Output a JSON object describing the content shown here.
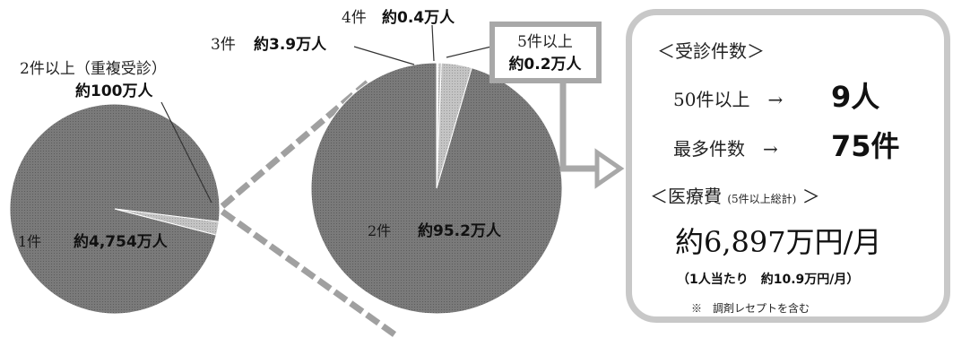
{
  "chart_data": [
    {
      "type": "pie",
      "slices": [
        {
          "label": "1件",
          "value_text": "約4,754万人",
          "value": 4754
        },
        {
          "label": "2件以上（重複受診）",
          "value_text": "約100万人",
          "value": 100
        }
      ]
    },
    {
      "type": "pie",
      "slices": [
        {
          "label": "2件",
          "value_text": "約95.2万人",
          "value": 95.2
        },
        {
          "label": "3件",
          "value_text": "約3.9万人",
          "value": 3.9
        },
        {
          "label": "4件",
          "value_text": "約0.4万人",
          "value": 0.4
        },
        {
          "label": "5件以上",
          "value_text": "約0.2万人",
          "value": 0.2
        }
      ]
    }
  ],
  "colors": {
    "pie_main": "#737373",
    "pie_small": "#b4b4b4",
    "connector": "#a0a0a0",
    "highlight_border": "#a8a8a8"
  },
  "info": {
    "heading_visits": "＜受診件数＞",
    "row1_label": "50件以上　→",
    "row1_value": "9人",
    "row2_label": "最多件数　→",
    "row2_value": "75件",
    "heading_cost": "＜医療費",
    "heading_cost_note": "(5件以上総計)",
    "heading_cost_end": "＞",
    "cost_total": "約6,897万円/月",
    "cost_per_person": "（1人当たり　約10.9万円/月）",
    "footnote": "※　調剤レセプトを含む"
  }
}
